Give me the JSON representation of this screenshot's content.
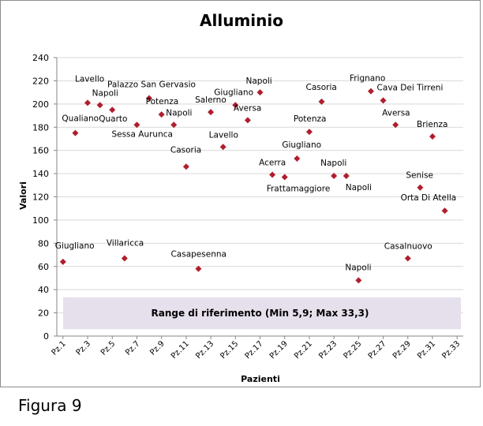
{
  "figure_caption": "Figura 9",
  "chart_data": {
    "type": "scatter",
    "title": "Alluminio",
    "xlabel": "Pazienti",
    "ylabel": "Valori",
    "ylim": [
      0,
      240
    ],
    "yticks": [
      0,
      20,
      40,
      60,
      80,
      100,
      120,
      140,
      160,
      180,
      200,
      220,
      240
    ],
    "xtick_labels": [
      "Pz.1",
      "Pz.3",
      "Pz.5",
      "Pz.7",
      "Pz.9",
      "Pz.11",
      "Pz.13",
      "Pz.15",
      "Pz.17",
      "Pz.19",
      "Pz.21",
      "Pz.23",
      "Pz.25",
      "Pz.27",
      "Pz.29",
      "Pz.31",
      "Pz.33"
    ],
    "grid": "horizontal",
    "marker": "diamond",
    "marker_color": "#b01e2e",
    "reference_band": {
      "label": "Range di riferimento  (Min 5,9; Max 33,3)",
      "min": 5.9,
      "max": 33.3,
      "color": "#e6e0ec"
    },
    "points": [
      {
        "x": 1,
        "y": 64,
        "label": "Giugliano"
      },
      {
        "x": 2,
        "y": 175,
        "label": "Qualiano"
      },
      {
        "x": 3,
        "y": 201,
        "label": "Lavello"
      },
      {
        "x": 4,
        "y": 199,
        "label": "Napoli"
      },
      {
        "x": 5,
        "y": 195,
        "label": "Quarto"
      },
      {
        "x": 6,
        "y": 67,
        "label": "Villaricca"
      },
      {
        "x": 7,
        "y": 182,
        "label": "Sessa Aurunca"
      },
      {
        "x": 8,
        "y": 205,
        "label": "Palazzo San Gervasio"
      },
      {
        "x": 9,
        "y": 191,
        "label": "Potenza"
      },
      {
        "x": 10,
        "y": 182,
        "label": "Napoli"
      },
      {
        "x": 11,
        "y": 146,
        "label": "Casoria"
      },
      {
        "x": 12,
        "y": 58,
        "label": "Casapesenna"
      },
      {
        "x": 13,
        "y": 193,
        "label": "Salerno"
      },
      {
        "x": 14,
        "y": 163,
        "label": "Lavello"
      },
      {
        "x": 15,
        "y": 199,
        "label": "Giugliano"
      },
      {
        "x": 16,
        "y": 186,
        "label": "Aversa"
      },
      {
        "x": 17,
        "y": 210,
        "label": "Napoli"
      },
      {
        "x": 18,
        "y": 139,
        "label": "Acerra"
      },
      {
        "x": 19,
        "y": 137,
        "label": "Frattamaggiore"
      },
      {
        "x": 20,
        "y": 153,
        "label": "Giugliano"
      },
      {
        "x": 21,
        "y": 176,
        "label": "Potenza"
      },
      {
        "x": 22,
        "y": 202,
        "label": "Casoria"
      },
      {
        "x": 23,
        "y": 138,
        "label": "Napoli"
      },
      {
        "x": 24,
        "y": 138,
        "label": "Napoli"
      },
      {
        "x": 25,
        "y": 48,
        "label": "Napoli"
      },
      {
        "x": 26,
        "y": 211,
        "label": "Frignano"
      },
      {
        "x": 27,
        "y": 203,
        "label": "Cava Dei Tirreni"
      },
      {
        "x": 28,
        "y": 182,
        "label": "Aversa"
      },
      {
        "x": 29,
        "y": 67,
        "label": "Casalnuovo"
      },
      {
        "x": 30,
        "y": 128,
        "label": "Senise"
      },
      {
        "x": 31,
        "y": 172,
        "label": "Brienza"
      },
      {
        "x": 32,
        "y": 108,
        "label": "Orta Di Atella"
      }
    ]
  }
}
